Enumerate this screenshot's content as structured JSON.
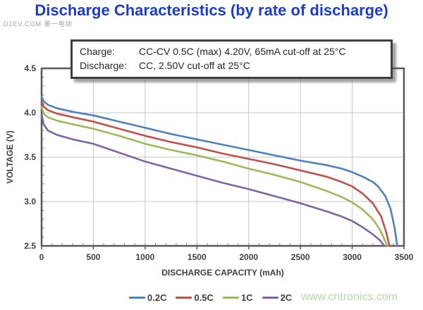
{
  "title": "Discharge Characteristics (by rate of discharge)",
  "watermark_top": "D1EV.COM 第一电动",
  "watermark_bottom": "www.cntronics.com",
  "conditions_box": {
    "rows": [
      {
        "label": "Charge:",
        "text": "CC-CV 0.5C (max) 4.20V, 65mA cut-off at 25°C"
      },
      {
        "label": "Discharge:",
        "text": "CC, 2.50V cut-off at 25°C"
      }
    ]
  },
  "chart_data": {
    "type": "line",
    "title": "",
    "xlabel": "DISCHARGE CAPACITY (mAh)",
    "ylabel": "VOLTAGE (V)",
    "xlim": [
      0,
      3500
    ],
    "ylim": [
      2.5,
      4.5
    ],
    "x_ticks": [
      0,
      500,
      1000,
      1500,
      2000,
      2500,
      3000,
      3500
    ],
    "x_tick_labels": [
      "0",
      "500",
      "1000",
      "1500",
      "2000",
      "2500",
      "3000",
      "3500"
    ],
    "y_ticks": [
      2.5,
      3.0,
      3.5,
      4.0,
      4.5
    ],
    "y_tick_labels": [
      "2.5",
      "3.0",
      "3.5",
      "4.0",
      "4.5"
    ],
    "x_minor_step": 100,
    "y_minor_step": 0.1,
    "grid": true,
    "legend_position": "bottom",
    "frame_color": "#595959",
    "grid_color": "#c6c6c6",
    "minor_tick_color": "#8c8c8c",
    "series": [
      {
        "name": "0.2C",
        "color": "#4F81BD",
        "points": [
          [
            0,
            4.18
          ],
          [
            20,
            4.13
          ],
          [
            60,
            4.09
          ],
          [
            150,
            4.05
          ],
          [
            300,
            4.01
          ],
          [
            500,
            3.97
          ],
          [
            750,
            3.9
          ],
          [
            1000,
            3.83
          ],
          [
            1250,
            3.76
          ],
          [
            1500,
            3.7
          ],
          [
            1750,
            3.64
          ],
          [
            2000,
            3.58
          ],
          [
            2250,
            3.52
          ],
          [
            2500,
            3.46
          ],
          [
            2750,
            3.41
          ],
          [
            2900,
            3.37
          ],
          [
            3000,
            3.33
          ],
          [
            3100,
            3.28
          ],
          [
            3200,
            3.22
          ],
          [
            3250,
            3.17
          ],
          [
            3320,
            3.06
          ],
          [
            3370,
            2.92
          ],
          [
            3410,
            2.7
          ],
          [
            3435,
            2.5
          ]
        ]
      },
      {
        "name": "0.5C",
        "color": "#C0504D",
        "points": [
          [
            0,
            4.13
          ],
          [
            20,
            4.07
          ],
          [
            60,
            4.03
          ],
          [
            150,
            3.99
          ],
          [
            300,
            3.95
          ],
          [
            500,
            3.9
          ],
          [
            750,
            3.82
          ],
          [
            1000,
            3.74
          ],
          [
            1250,
            3.67
          ],
          [
            1500,
            3.61
          ],
          [
            1750,
            3.54
          ],
          [
            2000,
            3.48
          ],
          [
            2250,
            3.42
          ],
          [
            2500,
            3.35
          ],
          [
            2750,
            3.28
          ],
          [
            2900,
            3.22
          ],
          [
            3000,
            3.17
          ],
          [
            3100,
            3.09
          ],
          [
            3200,
            2.98
          ],
          [
            3280,
            2.83
          ],
          [
            3330,
            2.65
          ],
          [
            3360,
            2.5
          ]
        ]
      },
      {
        "name": "1C",
        "color": "#9BBB59",
        "points": [
          [
            0,
            4.07
          ],
          [
            20,
            3.99
          ],
          [
            60,
            3.95
          ],
          [
            150,
            3.91
          ],
          [
            300,
            3.87
          ],
          [
            500,
            3.82
          ],
          [
            750,
            3.74
          ],
          [
            1000,
            3.65
          ],
          [
            1250,
            3.58
          ],
          [
            1500,
            3.52
          ],
          [
            1750,
            3.45
          ],
          [
            2000,
            3.37
          ],
          [
            2250,
            3.3
          ],
          [
            2500,
            3.22
          ],
          [
            2750,
            3.12
          ],
          [
            2900,
            3.05
          ],
          [
            3000,
            2.99
          ],
          [
            3100,
            2.91
          ],
          [
            3200,
            2.8
          ],
          [
            3270,
            2.68
          ],
          [
            3320,
            2.55
          ],
          [
            3340,
            2.5
          ]
        ]
      },
      {
        "name": "2C",
        "color": "#8064A2",
        "points": [
          [
            0,
            3.99
          ],
          [
            20,
            3.87
          ],
          [
            60,
            3.8
          ],
          [
            150,
            3.75
          ],
          [
            300,
            3.7
          ],
          [
            500,
            3.65
          ],
          [
            750,
            3.55
          ],
          [
            1000,
            3.45
          ],
          [
            1250,
            3.37
          ],
          [
            1500,
            3.29
          ],
          [
            1750,
            3.21
          ],
          [
            2000,
            3.14
          ],
          [
            2250,
            3.06
          ],
          [
            2500,
            2.98
          ],
          [
            2750,
            2.89
          ],
          [
            2900,
            2.83
          ],
          [
            3000,
            2.78
          ],
          [
            3100,
            2.71
          ],
          [
            3200,
            2.63
          ],
          [
            3270,
            2.56
          ],
          [
            3310,
            2.5
          ]
        ]
      }
    ]
  }
}
